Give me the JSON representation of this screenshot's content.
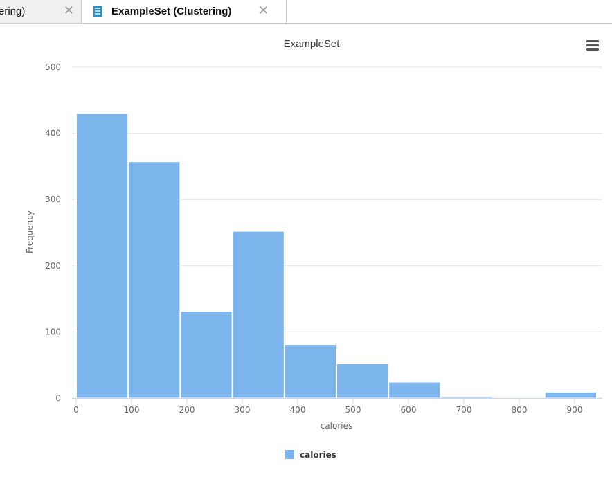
{
  "tabs": [
    {
      "label": "ering)",
      "active": false
    },
    {
      "label": "ExampleSet (Clustering)",
      "active": true
    }
  ],
  "icons": {
    "tab_document": "document-table-icon",
    "tab_close": "close-icon",
    "chart_menu": "hamburger-menu-icon"
  },
  "close_glyph": "✕",
  "chart_data": {
    "type": "bar",
    "title": "ExampleSet",
    "xlabel": "calories",
    "ylabel": "Frequency",
    "legend": {
      "position": "bottom-center",
      "entries": [
        "calories"
      ]
    },
    "grid": true,
    "color": "#7cb5ec",
    "xlim": [
      0,
      940
    ],
    "ylim": [
      0,
      500
    ],
    "x_ticks": [
      0,
      100,
      200,
      300,
      400,
      500,
      600,
      700,
      800,
      900
    ],
    "y_ticks": [
      0,
      100,
      200,
      300,
      400,
      500
    ],
    "bins": [
      {
        "x0": 0,
        "x1": 94,
        "value": 430
      },
      {
        "x0": 94,
        "x1": 188,
        "value": 357
      },
      {
        "x0": 188,
        "x1": 282,
        "value": 131
      },
      {
        "x0": 282,
        "x1": 376,
        "value": 252
      },
      {
        "x0": 376,
        "x1": 470,
        "value": 81
      },
      {
        "x0": 470,
        "x1": 564,
        "value": 52
      },
      {
        "x0": 564,
        "x1": 658,
        "value": 24
      },
      {
        "x0": 658,
        "x1": 752,
        "value": 2
      },
      {
        "x0": 752,
        "x1": 846,
        "value": 1
      },
      {
        "x0": 846,
        "x1": 940,
        "value": 9
      }
    ],
    "series": [
      {
        "name": "calories"
      }
    ]
  }
}
